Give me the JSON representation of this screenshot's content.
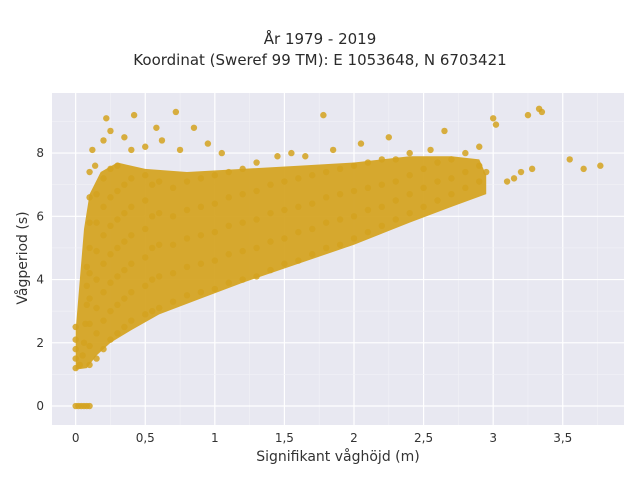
{
  "chart_data": {
    "type": "scatter",
    "title": "År 1979 - 2019",
    "subtitle": "Koordinat (Sweref 99 TM): E 1053648, N 6703421",
    "xlabel": "Signifikant våghöjd (m)",
    "ylabel": "Vågperiod (s)",
    "xlim": [
      -0.17,
      3.94
    ],
    "ylim": [
      -0.6,
      9.9
    ],
    "x_ticks": [
      0,
      0.5,
      1,
      1.5,
      2,
      2.5,
      3,
      3.5
    ],
    "x_tick_labels": [
      "0",
      "0,5",
      "1",
      "1,5",
      "2",
      "2,5",
      "3",
      "3,5"
    ],
    "y_ticks": [
      0,
      2,
      4,
      6,
      8
    ],
    "y_tick_labels": [
      "0",
      "2",
      "4",
      "6",
      "8"
    ],
    "grid": true,
    "colors": {
      "point": "#d4a21f",
      "plot_bg": "#e8e8f1",
      "grid": "#ffffff"
    },
    "series": [
      {
        "points": [
          [
            0.0,
            0.0
          ],
          [
            0.02,
            0.0
          ],
          [
            0.04,
            0.0
          ],
          [
            0.06,
            0.0
          ],
          [
            0.08,
            0.0
          ],
          [
            0.1,
            0.0
          ],
          [
            0.0,
            1.2
          ],
          [
            0.0,
            1.5
          ],
          [
            0.0,
            1.8
          ],
          [
            0.0,
            2.1
          ],
          [
            0.0,
            2.5
          ],
          [
            0.03,
            1.3
          ],
          [
            0.05,
            1.6
          ],
          [
            0.06,
            2.0
          ],
          [
            0.07,
            2.6
          ],
          [
            0.08,
            3.2
          ],
          [
            0.08,
            3.8
          ],
          [
            0.08,
            4.4
          ],
          [
            0.1,
            1.3
          ],
          [
            0.1,
            1.9
          ],
          [
            0.1,
            2.6
          ],
          [
            0.1,
            3.4
          ],
          [
            0.1,
            4.2
          ],
          [
            0.1,
            5.0
          ],
          [
            0.1,
            5.8
          ],
          [
            0.1,
            6.6
          ],
          [
            0.1,
            7.4
          ],
          [
            0.12,
            8.1
          ],
          [
            0.14,
            7.6
          ],
          [
            0.15,
            1.5
          ],
          [
            0.15,
            2.3
          ],
          [
            0.15,
            3.1
          ],
          [
            0.15,
            4.0
          ],
          [
            0.15,
            4.9
          ],
          [
            0.15,
            5.8
          ],
          [
            0.15,
            6.7
          ],
          [
            0.2,
            1.8
          ],
          [
            0.2,
            2.7
          ],
          [
            0.2,
            3.6
          ],
          [
            0.2,
            4.5
          ],
          [
            0.2,
            5.4
          ],
          [
            0.2,
            6.3
          ],
          [
            0.2,
            7.2
          ],
          [
            0.2,
            8.4
          ],
          [
            0.22,
            9.1
          ],
          [
            0.25,
            8.7
          ],
          [
            0.25,
            2.1
          ],
          [
            0.25,
            3.0
          ],
          [
            0.25,
            3.9
          ],
          [
            0.25,
            4.8
          ],
          [
            0.25,
            5.7
          ],
          [
            0.25,
            6.6
          ],
          [
            0.25,
            7.5
          ],
          [
            0.3,
            2.3
          ],
          [
            0.3,
            3.2
          ],
          [
            0.3,
            4.1
          ],
          [
            0.3,
            5.0
          ],
          [
            0.3,
            5.9
          ],
          [
            0.3,
            6.8
          ],
          [
            0.3,
            7.6
          ],
          [
            0.35,
            2.5
          ],
          [
            0.35,
            3.4
          ],
          [
            0.35,
            4.3
          ],
          [
            0.35,
            5.2
          ],
          [
            0.35,
            6.1
          ],
          [
            0.35,
            7.0
          ],
          [
            0.35,
            8.5
          ],
          [
            0.4,
            2.7
          ],
          [
            0.4,
            3.6
          ],
          [
            0.4,
            4.5
          ],
          [
            0.4,
            5.4
          ],
          [
            0.4,
            6.3
          ],
          [
            0.4,
            7.2
          ],
          [
            0.4,
            8.1
          ],
          [
            0.42,
            9.2
          ],
          [
            0.5,
            2.9
          ],
          [
            0.5,
            3.8
          ],
          [
            0.5,
            4.7
          ],
          [
            0.5,
            5.6
          ],
          [
            0.5,
            6.5
          ],
          [
            0.5,
            7.3
          ],
          [
            0.5,
            8.2
          ],
          [
            0.55,
            3.0
          ],
          [
            0.55,
            4.0
          ],
          [
            0.55,
            5.0
          ],
          [
            0.55,
            6.0
          ],
          [
            0.55,
            7.0
          ],
          [
            0.58,
            8.8
          ],
          [
            0.6,
            3.1
          ],
          [
            0.6,
            4.1
          ],
          [
            0.6,
            5.1
          ],
          [
            0.6,
            6.1
          ],
          [
            0.6,
            7.1
          ],
          [
            0.62,
            8.4
          ],
          [
            0.7,
            3.3
          ],
          [
            0.7,
            4.2
          ],
          [
            0.7,
            5.1
          ],
          [
            0.7,
            6.0
          ],
          [
            0.7,
            6.9
          ],
          [
            0.72,
            9.3
          ],
          [
            0.75,
            8.1
          ],
          [
            0.8,
            3.5
          ],
          [
            0.8,
            4.4
          ],
          [
            0.8,
            5.3
          ],
          [
            0.8,
            6.2
          ],
          [
            0.8,
            7.1
          ],
          [
            0.85,
            8.8
          ],
          [
            0.9,
            3.6
          ],
          [
            0.9,
            4.5
          ],
          [
            0.9,
            5.4
          ],
          [
            0.9,
            6.3
          ],
          [
            0.9,
            7.2
          ],
          [
            0.95,
            8.3
          ],
          [
            1.0,
            3.7
          ],
          [
            1.0,
            4.6
          ],
          [
            1.0,
            5.5
          ],
          [
            1.0,
            6.4
          ],
          [
            1.0,
            7.3
          ],
          [
            1.05,
            8.0
          ],
          [
            1.1,
            3.9
          ],
          [
            1.1,
            4.8
          ],
          [
            1.1,
            5.7
          ],
          [
            1.1,
            6.6
          ],
          [
            1.1,
            7.4
          ],
          [
            1.2,
            4.0
          ],
          [
            1.2,
            4.9
          ],
          [
            1.2,
            5.8
          ],
          [
            1.2,
            6.7
          ],
          [
            1.2,
            7.5
          ],
          [
            1.3,
            4.1
          ],
          [
            1.3,
            5.0
          ],
          [
            1.3,
            5.9
          ],
          [
            1.3,
            6.8
          ],
          [
            1.3,
            7.7
          ],
          [
            1.4,
            4.3
          ],
          [
            1.4,
            5.2
          ],
          [
            1.4,
            6.1
          ],
          [
            1.4,
            7.0
          ],
          [
            1.45,
            7.9
          ],
          [
            1.5,
            4.5
          ],
          [
            1.5,
            5.3
          ],
          [
            1.5,
            6.2
          ],
          [
            1.5,
            7.1
          ],
          [
            1.55,
            8.0
          ],
          [
            1.6,
            4.6
          ],
          [
            1.6,
            5.5
          ],
          [
            1.6,
            6.3
          ],
          [
            1.6,
            7.2
          ],
          [
            1.65,
            7.9
          ],
          [
            1.7,
            4.8
          ],
          [
            1.7,
            5.6
          ],
          [
            1.7,
            6.4
          ],
          [
            1.7,
            7.3
          ],
          [
            1.78,
            9.2
          ],
          [
            1.8,
            5.0
          ],
          [
            1.8,
            5.8
          ],
          [
            1.8,
            6.6
          ],
          [
            1.8,
            7.4
          ],
          [
            1.85,
            8.1
          ],
          [
            1.9,
            5.1
          ],
          [
            1.9,
            5.9
          ],
          [
            1.9,
            6.7
          ],
          [
            1.9,
            7.5
          ],
          [
            2.0,
            5.3
          ],
          [
            2.0,
            6.0
          ],
          [
            2.0,
            6.8
          ],
          [
            2.0,
            7.6
          ],
          [
            2.05,
            8.3
          ],
          [
            2.1,
            5.5
          ],
          [
            2.1,
            6.2
          ],
          [
            2.1,
            6.9
          ],
          [
            2.1,
            7.7
          ],
          [
            2.2,
            5.7
          ],
          [
            2.2,
            6.3
          ],
          [
            2.2,
            7.0
          ],
          [
            2.2,
            7.8
          ],
          [
            2.25,
            8.5
          ],
          [
            2.3,
            5.9
          ],
          [
            2.3,
            6.5
          ],
          [
            2.3,
            7.1
          ],
          [
            2.3,
            7.8
          ],
          [
            2.4,
            6.1
          ],
          [
            2.4,
            6.7
          ],
          [
            2.4,
            7.3
          ],
          [
            2.4,
            8.0
          ],
          [
            2.5,
            6.3
          ],
          [
            2.5,
            6.9
          ],
          [
            2.5,
            7.5
          ],
          [
            2.55,
            8.1
          ],
          [
            2.6,
            6.5
          ],
          [
            2.6,
            7.1
          ],
          [
            2.6,
            7.7
          ],
          [
            2.65,
            8.7
          ],
          [
            2.7,
            6.7
          ],
          [
            2.7,
            7.2
          ],
          [
            2.7,
            7.8
          ],
          [
            2.8,
            6.9
          ],
          [
            2.8,
            7.4
          ],
          [
            2.8,
            8.0
          ],
          [
            2.9,
            7.1
          ],
          [
            2.9,
            7.6
          ],
          [
            2.9,
            8.2
          ],
          [
            2.95,
            7.4
          ],
          [
            3.0,
            9.1
          ],
          [
            3.02,
            8.9
          ],
          [
            3.1,
            7.1
          ],
          [
            3.15,
            7.2
          ],
          [
            3.2,
            7.4
          ],
          [
            3.25,
            9.2
          ],
          [
            3.28,
            7.5
          ],
          [
            3.33,
            9.4
          ],
          [
            3.35,
            9.3
          ],
          [
            3.55,
            7.8
          ],
          [
            3.65,
            7.5
          ],
          [
            3.77,
            7.6
          ]
        ]
      }
    ]
  }
}
